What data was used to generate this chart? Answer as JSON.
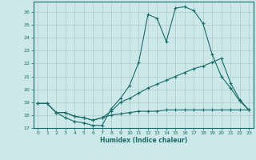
{
  "xlabel": "Humidex (Indice chaleur)",
  "background_color": "#cce8e8",
  "line_color": "#1a6b6b",
  "grid_color": "#aacccc",
  "xlim": [
    -0.5,
    23.5
  ],
  "ylim": [
    17,
    26.8
  ],
  "yticks": [
    17,
    18,
    19,
    20,
    21,
    22,
    23,
    24,
    25,
    26
  ],
  "xticks": [
    0,
    1,
    2,
    3,
    4,
    5,
    6,
    7,
    8,
    9,
    10,
    11,
    12,
    13,
    14,
    15,
    16,
    17,
    18,
    19,
    20,
    21,
    22,
    23
  ],
  "series1_x": [
    0,
    1,
    2,
    3,
    4,
    5,
    6,
    7,
    8,
    9,
    10,
    11,
    12,
    13,
    14,
    15,
    16,
    17,
    18,
    19,
    20,
    21,
    22,
    23
  ],
  "series1_y": [
    18.9,
    18.9,
    18.2,
    17.8,
    17.5,
    17.4,
    17.2,
    17.2,
    18.5,
    19.3,
    20.3,
    22.1,
    25.8,
    25.5,
    23.7,
    26.3,
    26.4,
    26.1,
    25.1,
    22.7,
    21.0,
    20.1,
    19.1,
    18.4
  ],
  "series2_x": [
    0,
    1,
    2,
    3,
    4,
    5,
    6,
    7,
    8,
    9,
    10,
    11,
    12,
    13,
    14,
    15,
    16,
    17,
    18,
    19,
    20,
    21,
    22,
    23
  ],
  "series2_y": [
    18.9,
    18.9,
    18.2,
    18.2,
    17.9,
    17.8,
    17.6,
    17.8,
    18.3,
    19.0,
    19.3,
    19.7,
    20.1,
    20.4,
    20.7,
    21.0,
    21.3,
    21.6,
    21.8,
    22.1,
    22.4,
    20.5,
    19.2,
    18.4
  ],
  "series3_x": [
    0,
    1,
    2,
    3,
    4,
    5,
    6,
    7,
    8,
    9,
    10,
    11,
    12,
    13,
    14,
    15,
    16,
    17,
    18,
    19,
    20,
    21,
    22,
    23
  ],
  "series3_y": [
    18.9,
    18.9,
    18.2,
    18.2,
    17.9,
    17.8,
    17.6,
    17.8,
    18.0,
    18.1,
    18.2,
    18.3,
    18.3,
    18.3,
    18.4,
    18.4,
    18.4,
    18.4,
    18.4,
    18.4,
    18.4,
    18.4,
    18.4,
    18.4
  ]
}
